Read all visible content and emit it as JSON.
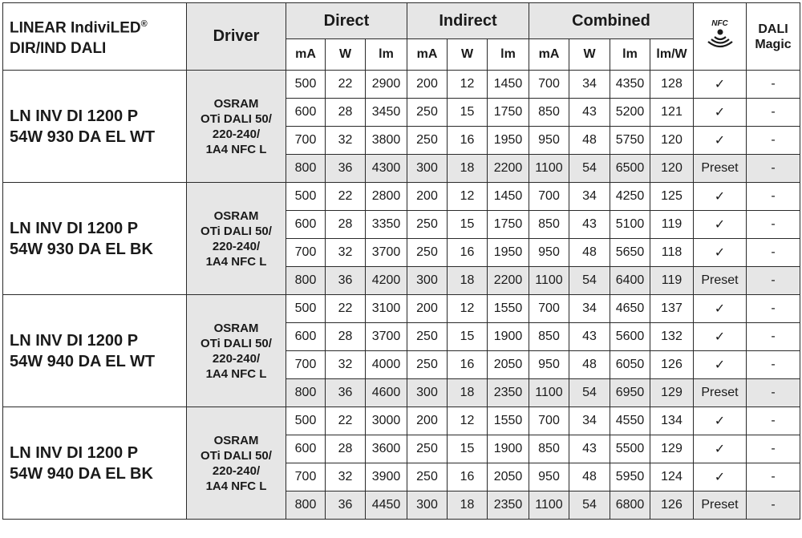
{
  "header": {
    "title_line1": "LINEAR IndiviLED",
    "title_reg": "®",
    "title_line2": "DIR/IND DALI",
    "driver": "Driver",
    "groups": [
      "Direct",
      "Indirect",
      "Combined"
    ],
    "subcols": [
      "mA",
      "W",
      "lm",
      "mA",
      "W",
      "lm",
      "mA",
      "W",
      "lm",
      "lm/W"
    ],
    "nfc_label": "NFC",
    "nfc_icon": "nfc-wave-icon",
    "dali_line1": "DALI",
    "dali_line2": "Magic"
  },
  "colors": {
    "gray": "#e6e6e6",
    "border": "#2a2a2a"
  },
  "products": [
    {
      "name1": "LN INV DI 1200 P",
      "name2": "54W 930 DA EL WT",
      "driver": [
        "OSRAM",
        "OTi DALI 50/",
        "220-240/",
        "1A4 NFC L"
      ],
      "rows": [
        [
          "500",
          "22",
          "2900",
          "200",
          "12",
          "1450",
          "700",
          "34",
          "4350",
          "128",
          "✓",
          "-"
        ],
        [
          "600",
          "28",
          "3450",
          "250",
          "15",
          "1750",
          "850",
          "43",
          "5200",
          "121",
          "✓",
          "-"
        ],
        [
          "700",
          "32",
          "3800",
          "250",
          "16",
          "1950",
          "950",
          "48",
          "5750",
          "120",
          "✓",
          "-"
        ],
        [
          "800",
          "36",
          "4300",
          "300",
          "18",
          "2200",
          "1100",
          "54",
          "6500",
          "120",
          "Preset",
          "-"
        ]
      ]
    },
    {
      "name1": "LN INV DI 1200 P",
      "name2": "54W 930 DA EL BK",
      "driver": [
        "OSRAM",
        "OTi DALI 50/",
        "220-240/",
        "1A4 NFC L"
      ],
      "rows": [
        [
          "500",
          "22",
          "2800",
          "200",
          "12",
          "1450",
          "700",
          "34",
          "4250",
          "125",
          "✓",
          "-"
        ],
        [
          "600",
          "28",
          "3350",
          "250",
          "15",
          "1750",
          "850",
          "43",
          "5100",
          "119",
          "✓",
          "-"
        ],
        [
          "700",
          "32",
          "3700",
          "250",
          "16",
          "1950",
          "950",
          "48",
          "5650",
          "118",
          "✓",
          "-"
        ],
        [
          "800",
          "36",
          "4200",
          "300",
          "18",
          "2200",
          "1100",
          "54",
          "6400",
          "119",
          "Preset",
          "-"
        ]
      ]
    },
    {
      "name1": "LN INV DI 1200 P",
      "name2": "54W 940 DA EL WT",
      "driver": [
        "OSRAM",
        "OTi DALI 50/",
        "220-240/",
        "1A4 NFC L"
      ],
      "rows": [
        [
          "500",
          "22",
          "3100",
          "200",
          "12",
          "1550",
          "700",
          "34",
          "4650",
          "137",
          "✓",
          "-"
        ],
        [
          "600",
          "28",
          "3700",
          "250",
          "15",
          "1900",
          "850",
          "43",
          "5600",
          "132",
          "✓",
          "-"
        ],
        [
          "700",
          "32",
          "4000",
          "250",
          "16",
          "2050",
          "950",
          "48",
          "6050",
          "126",
          "✓",
          "-"
        ],
        [
          "800",
          "36",
          "4600",
          "300",
          "18",
          "2350",
          "1100",
          "54",
          "6950",
          "129",
          "Preset",
          "-"
        ]
      ]
    },
    {
      "name1": "LN INV DI 1200 P",
      "name2": "54W 940 DA EL BK",
      "driver": [
        "OSRAM",
        "OTi DALI 50/",
        "220-240/",
        "1A4 NFC L"
      ],
      "rows": [
        [
          "500",
          "22",
          "3000",
          "200",
          "12",
          "1550",
          "700",
          "34",
          "4550",
          "134",
          "✓",
          "-"
        ],
        [
          "600",
          "28",
          "3600",
          "250",
          "15",
          "1900",
          "850",
          "43",
          "5500",
          "129",
          "✓",
          "-"
        ],
        [
          "700",
          "32",
          "3900",
          "250",
          "16",
          "2050",
          "950",
          "48",
          "5950",
          "124",
          "✓",
          "-"
        ],
        [
          "800",
          "36",
          "4450",
          "300",
          "18",
          "2350",
          "1100",
          "54",
          "6800",
          "126",
          "Preset",
          "-"
        ]
      ]
    }
  ]
}
